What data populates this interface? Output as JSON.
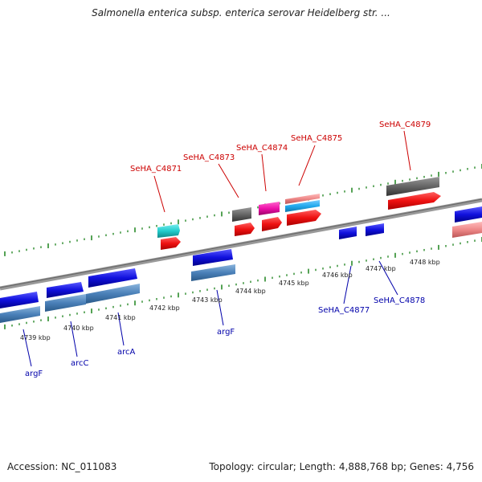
{
  "title": "Salmonella enterica subsp. enterica serovar Heidelberg str. ...",
  "footer": {
    "accession": "Accession: NC_011083",
    "topology": "Topology: circular; Length: 4,888,768 bp; Genes: 4,756"
  },
  "scale_labels": [
    "4739 kbp",
    "4740 kbp",
    "4741 kbp",
    "4742 kbp",
    "4743 kbp",
    "4744 kbp",
    "4745 kbp",
    "4746 kbp",
    "4747 kbp",
    "4748 kbp"
  ],
  "top_labels": [
    "SeHA_C4871",
    "SeHA_C4873",
    "SeHA_C4874",
    "SeHA_C4875",
    "SeHA_C4879"
  ],
  "bottom_labels": [
    "argF",
    "arcC",
    "arcA",
    "argF",
    "SeHA_C4877",
    "SeHA_C4878"
  ],
  "colors": {
    "axis": "#8a8a8a",
    "ticks": "#2a8a2a",
    "cds_blue": "#1010dd",
    "cds_steel": "#4a80b8",
    "cds_red": "#ee1111",
    "cds_cyan": "#22cccc",
    "cds_gray": "#666666",
    "cds_magenta": "#ee11aa",
    "cds_pink": "#ee8888",
    "cds_lightblue": "#22aaee",
    "label_red": "#cc0000",
    "label_blue": "#0000aa"
  }
}
